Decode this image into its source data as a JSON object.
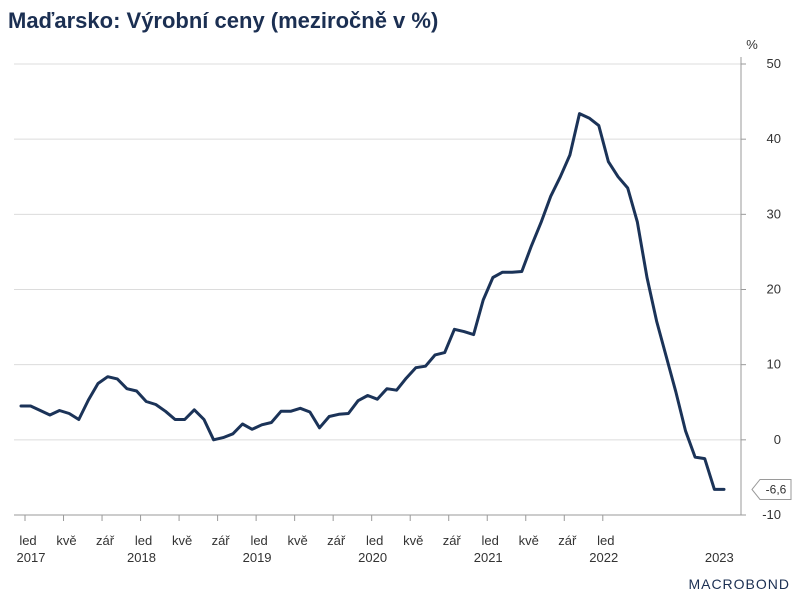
{
  "chart_data": {
    "type": "line",
    "title": "Maďarsko: Výrobní ceny (meziročně v %)",
    "ylabel": "%",
    "ylim": [
      -10,
      50
    ],
    "yticks": [
      50,
      40,
      30,
      20,
      10,
      0,
      -10
    ],
    "grid": true,
    "x_start": "2017-01",
    "month_labels": [
      {
        "label": "led",
        "date": "2017-01"
      },
      {
        "label": "kvě",
        "date": "2017-05"
      },
      {
        "label": "zář",
        "date": "2017-09"
      },
      {
        "label": "led",
        "date": "2018-01"
      },
      {
        "label": "kvě",
        "date": "2018-05"
      },
      {
        "label": "zář",
        "date": "2018-09"
      },
      {
        "label": "led",
        "date": "2019-01"
      },
      {
        "label": "kvě",
        "date": "2019-05"
      },
      {
        "label": "zář",
        "date": "2019-09"
      },
      {
        "label": "led",
        "date": "2020-01"
      },
      {
        "label": "kvě",
        "date": "2020-05"
      },
      {
        "label": "zář",
        "date": "2020-09"
      },
      {
        "label": "led",
        "date": "2021-01"
      },
      {
        "label": "kvě",
        "date": "2021-05"
      },
      {
        "label": "zář",
        "date": "2021-09"
      },
      {
        "label": "led",
        "date": "2022-01"
      }
    ],
    "year_labels": [
      {
        "label": "2017",
        "date": "2017-01"
      },
      {
        "label": "2018",
        "date": "2017-05"
      },
      {
        "label": "2019",
        "date": "2018-05"
      },
      {
        "label": "2020",
        "date": "2019-05"
      },
      {
        "label": "2021",
        "date": "2020-05"
      },
      {
        "label": "2022",
        "date": "2021-05"
      },
      {
        "label": "2023",
        "date": "2022-05"
      }
    ],
    "series": [
      {
        "color": "#1b3358",
        "values": [
          4.5,
          4.5,
          3.9,
          3.3,
          3.9,
          3.5,
          2.7,
          5.3,
          7.5,
          8.4,
          8.1,
          6.8,
          6.5,
          5.1,
          4.7,
          3.8,
          2.7,
          2.7,
          4.0,
          2.7,
          0.0,
          0.3,
          0.8,
          2.1,
          1.4,
          2.0,
          2.3,
          3.8,
          3.8,
          4.2,
          3.7,
          1.6,
          3.1,
          3.4,
          3.5,
          5.2,
          5.9,
          5.4,
          6.8,
          6.6,
          8.2,
          9.6,
          9.8,
          11.3,
          11.6,
          14.7,
          14.4,
          14.0,
          18.6,
          21.6,
          22.3,
          22.3,
          22.4,
          25.8,
          28.9,
          32.4,
          35.0,
          37.9,
          43.4,
          42.8,
          41.8,
          37.0,
          35.0,
          33.5,
          29.0,
          21.6,
          15.8,
          11.1,
          6.4,
          1.2,
          -2.3,
          -2.5,
          -6.6,
          -6.6
        ]
      }
    ],
    "last_value_label": "-6,6"
  },
  "branding": "MACROBOND"
}
